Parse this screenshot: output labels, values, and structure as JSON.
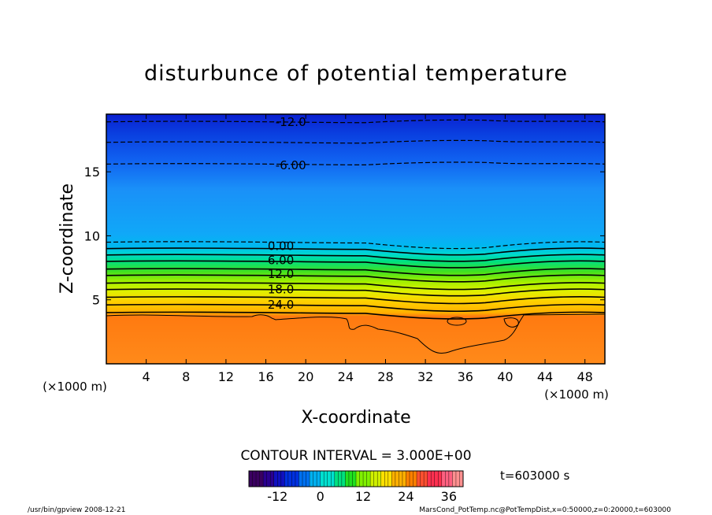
{
  "chart_data": {
    "type": "heatmap",
    "title": "disturbunce of potential temperature",
    "xlabel": "X-coordinate",
    "ylabel": "Z-coordinate",
    "x_unit": "(×1000 m)",
    "y_unit": "(×1000 m)",
    "xlim": [
      0,
      50
    ],
    "ylim": [
      0,
      19.5
    ],
    "x_ticks": [
      4,
      8,
      12,
      16,
      20,
      24,
      28,
      32,
      36,
      40,
      44,
      48
    ],
    "y_ticks": [
      5,
      10,
      15
    ],
    "contour_interval_text": "CONTOUR INTERVAL = 3.000E+00",
    "time_text": "t=603000 s",
    "contour_labels": [
      {
        "text": "-12.0",
        "x": 18.5,
        "z": 18.9
      },
      {
        "text": "-6.00",
        "x": 18.5,
        "z": 15.5
      },
      {
        "text": "0.00",
        "x": 17.5,
        "z": 9.2
      },
      {
        "text": "6.00",
        "x": 17.5,
        "z": 8.1
      },
      {
        "text": "12.0",
        "x": 17.5,
        "z": 7.0
      },
      {
        "text": "18.0",
        "x": 17.5,
        "z": 5.8
      },
      {
        "text": "24.0",
        "x": 17.5,
        "z": 4.6
      }
    ],
    "contour_lines": [
      {
        "level": -12,
        "z": 18.9,
        "style": "dashed"
      },
      {
        "level": -9,
        "z": 17.3,
        "style": "dashed"
      },
      {
        "level": -6,
        "z": 15.6,
        "style": "dashed"
      },
      {
        "level": -3,
        "z": 9.5,
        "style": "dashed"
      },
      {
        "level": 0,
        "z": 9.0,
        "style": "solid"
      },
      {
        "level": 3,
        "z": 8.5,
        "style": "solid"
      },
      {
        "level": 6,
        "z": 8.0,
        "style": "solid"
      },
      {
        "level": 9,
        "z": 7.4,
        "style": "solid"
      },
      {
        "level": 12,
        "z": 6.9,
        "style": "solid"
      },
      {
        "level": 15,
        "z": 6.3,
        "style": "solid"
      },
      {
        "level": 18,
        "z": 5.8,
        "style": "solid"
      },
      {
        "level": 21,
        "z": 5.2,
        "style": "solid"
      },
      {
        "level": 24,
        "z": 4.6,
        "style": "solid"
      },
      {
        "level": 27,
        "z": 4.0,
        "style": "solid"
      }
    ],
    "colorbar": {
      "min": -20,
      "max": 40,
      "tick_labels": [
        "-12",
        "0",
        "12",
        "24",
        "36"
      ],
      "tick_values": [
        -12,
        0,
        12,
        24,
        36
      ],
      "colors": [
        "#3a0060",
        "#2a0090",
        "#1010c0",
        "#0030e0",
        "#0070f0",
        "#00b0f0",
        "#00e0d0",
        "#00e080",
        "#20e020",
        "#80f000",
        "#d0f000",
        "#ffe000",
        "#ffb000",
        "#ff8000",
        "#ff5030",
        "#ff3050",
        "#ff6080",
        "#ff9090"
      ]
    }
  },
  "footer": {
    "left": "/usr/bin/gpview   2008-12-21",
    "right": "MarsCond_PotTemp.nc@PotTempDist,x=0:50000,z=0:20000,t=603000"
  }
}
